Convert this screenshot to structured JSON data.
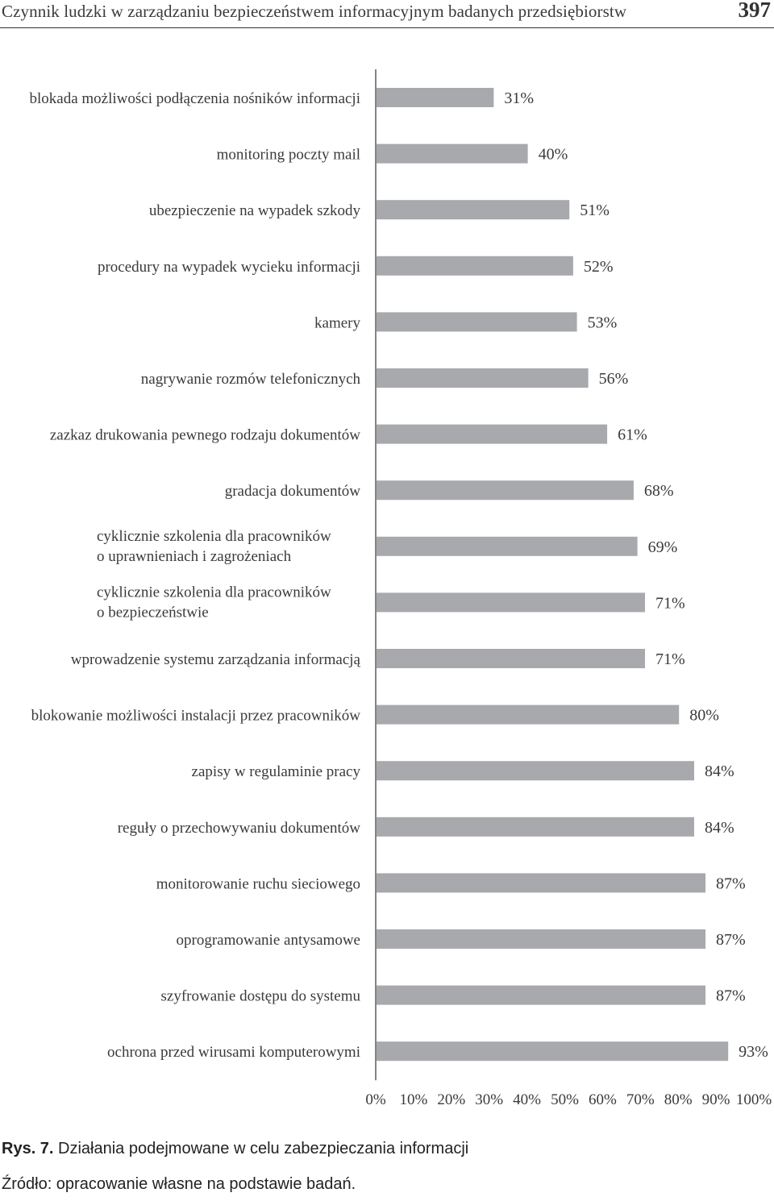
{
  "header": {
    "title": "Czynnik ludzki w zarządzaniu bezpieczeństwem informacyjnym badanych przedsiębiorstw",
    "page_number": "397"
  },
  "chart_data": {
    "type": "bar",
    "orientation": "horizontal",
    "categories": [
      [
        "blokada możliwości podłączenia nośników informacji"
      ],
      [
        "monitoring poczty mail"
      ],
      [
        "ubezpieczenie na wypadek szkody"
      ],
      [
        "procedury na wypadek wycieku informacji"
      ],
      [
        "kamery"
      ],
      [
        "nagrywanie rozmów telefonicznych"
      ],
      [
        "zazkaz drukowania pewnego rodzaju dokumentów"
      ],
      [
        "gradacja dokumentów"
      ],
      [
        "cyklicznie szkolenia dla pracowników",
        "o uprawnieniach i zagrożeniach"
      ],
      [
        "cyklicznie szkolenia dla pracowników",
        "o bezpieczeństwie"
      ],
      [
        "wprowadzenie systemu zarządzania informacją"
      ],
      [
        "blokowanie możliwości instalacji przez pracowników"
      ],
      [
        "zapisy w regulaminie pracy"
      ],
      [
        "reguły o przechowywaniu dokumentów"
      ],
      [
        "monitorowanie ruchu sieciowego"
      ],
      [
        "oprogramowanie antysamowe"
      ],
      [
        "szyfrowanie dostępu do systemu"
      ],
      [
        "ochrona przed wirusami komputerowymi"
      ]
    ],
    "values": [
      31,
      40,
      51,
      52,
      53,
      56,
      61,
      68,
      69,
      71,
      71,
      80,
      84,
      84,
      87,
      87,
      87,
      93
    ],
    "value_labels": [
      "31%",
      "40%",
      "51%",
      "52%",
      "53%",
      "56%",
      "61%",
      "68%",
      "69%",
      "71%",
      "71%",
      "80%",
      "84%",
      "84%",
      "87%",
      "87%",
      "87%",
      "93%"
    ],
    "xlim": [
      0,
      100
    ],
    "x_ticks": [
      "0%",
      "10%",
      "20%",
      "30%",
      "40%",
      "50%",
      "60%",
      "70%",
      "80%",
      "90%",
      "100%"
    ],
    "bar_color": "#a7a9ac",
    "grid": false
  },
  "caption": {
    "figure_label": "Rys. 7.",
    "text": " Działania podejmowane w celu zabezpieczania informacji"
  },
  "source": "Źródło: opracowanie własne na podstawie badań."
}
